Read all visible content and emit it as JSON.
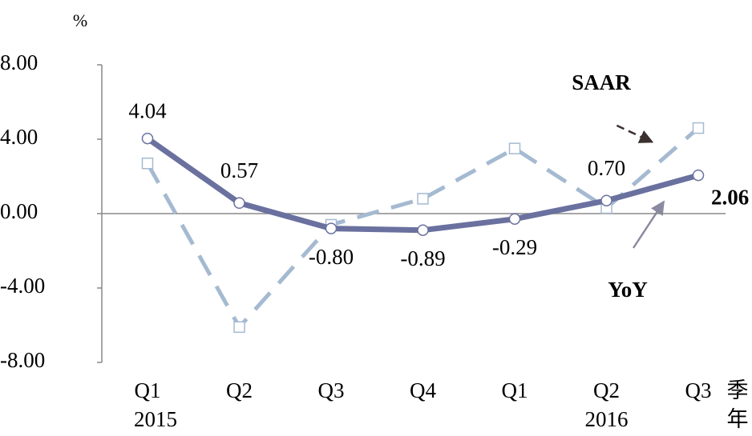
{
  "chart_data": {
    "type": "line",
    "y_unit": "%",
    "categories": [
      "Q1",
      "Q2",
      "Q3",
      "Q4",
      "Q1",
      "Q2",
      "Q3"
    ],
    "years": [
      "2015",
      null,
      null,
      null,
      null,
      "2016",
      null
    ],
    "x_label_top": "季",
    "x_label_bottom": "年",
    "ylim": [
      -8,
      8
    ],
    "yticks": [
      {
        "value": -8,
        "label": "-8.00"
      },
      {
        "value": -4,
        "label": "-4.00"
      },
      {
        "value": 0,
        "label": "0.00"
      },
      {
        "value": 4,
        "label": "4.00"
      },
      {
        "value": 8,
        "label": "8.00"
      }
    ],
    "series": [
      {
        "name": "SAAR",
        "color": "#a5bad1",
        "dashed": true,
        "marker": "square",
        "values": [
          2.7,
          -6.1,
          -0.6,
          0.8,
          3.5,
          0.3,
          4.6
        ]
      },
      {
        "name": "YoY",
        "color": "#6a719f",
        "dashed": false,
        "marker": "circle",
        "values": [
          4.04,
          0.57,
          -0.8,
          -0.89,
          -0.29,
          0.7,
          2.06
        ],
        "value_labels": [
          "4.04",
          "0.57",
          "-0.80",
          "-0.89",
          "-0.29",
          "0.70",
          "2.06"
        ]
      }
    ]
  }
}
